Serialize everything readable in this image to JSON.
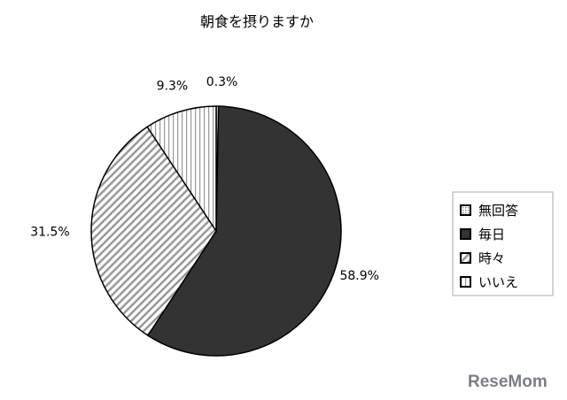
{
  "chart_data": {
    "type": "pie",
    "title": "朝食を摂りますか",
    "start_angle_deg": 0,
    "direction": "clockwise",
    "slices": [
      {
        "name": "無回答",
        "value": 0.3,
        "label": "0.3%",
        "pattern": "dots",
        "color": "#cccccc"
      },
      {
        "name": "毎日",
        "value": 58.9,
        "label": "58.9%",
        "pattern": "solid",
        "color": "#333333"
      },
      {
        "name": "時々",
        "value": 31.5,
        "label": "31.5%",
        "pattern": "diagonal-stripes",
        "color": "#aaaaaa"
      },
      {
        "name": "いいえ",
        "value": 9.3,
        "label": "9.3%",
        "pattern": "vertical-stripes",
        "color": "#999999"
      }
    ],
    "legend": {
      "placement": "right",
      "entries": [
        "無回答",
        "毎日",
        "時々",
        "いいえ"
      ]
    }
  },
  "logo": "ReseMom"
}
